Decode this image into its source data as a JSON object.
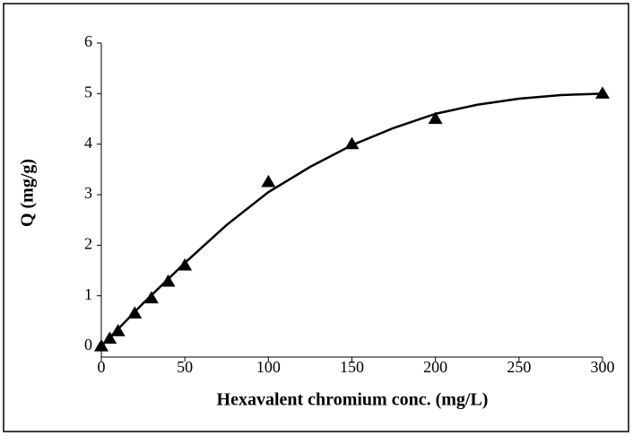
{
  "chart_data": {
    "type": "scatter",
    "x_label": "Hexavalent chromium conc. (mg/L)",
    "y_label": "Q (mg/g)",
    "xlim": [
      0,
      300
    ],
    "ylim": [
      0,
      6
    ],
    "xticks": [
      0,
      50,
      100,
      150,
      200,
      250,
      300
    ],
    "yticks": [
      0,
      1,
      2,
      3,
      4,
      5,
      6
    ],
    "series": [
      {
        "style": "marker",
        "color": "#000000",
        "x": [
          0,
          5,
          10,
          20,
          30,
          40,
          50,
          100,
          150,
          200,
          300
        ],
        "values": [
          0,
          0.15,
          0.3,
          0.65,
          0.95,
          1.28,
          1.6,
          3.25,
          4.0,
          4.5,
          5.0
        ]
      },
      {
        "style": "line",
        "color": "#000000",
        "x": [
          0,
          25,
          50,
          75,
          100,
          125,
          150,
          175,
          200,
          225,
          250,
          275,
          300
        ],
        "values": [
          0,
          0.85,
          1.65,
          2.4,
          3.05,
          3.55,
          3.98,
          4.32,
          4.6,
          4.78,
          4.9,
          4.97,
          5.0
        ]
      }
    ]
  }
}
